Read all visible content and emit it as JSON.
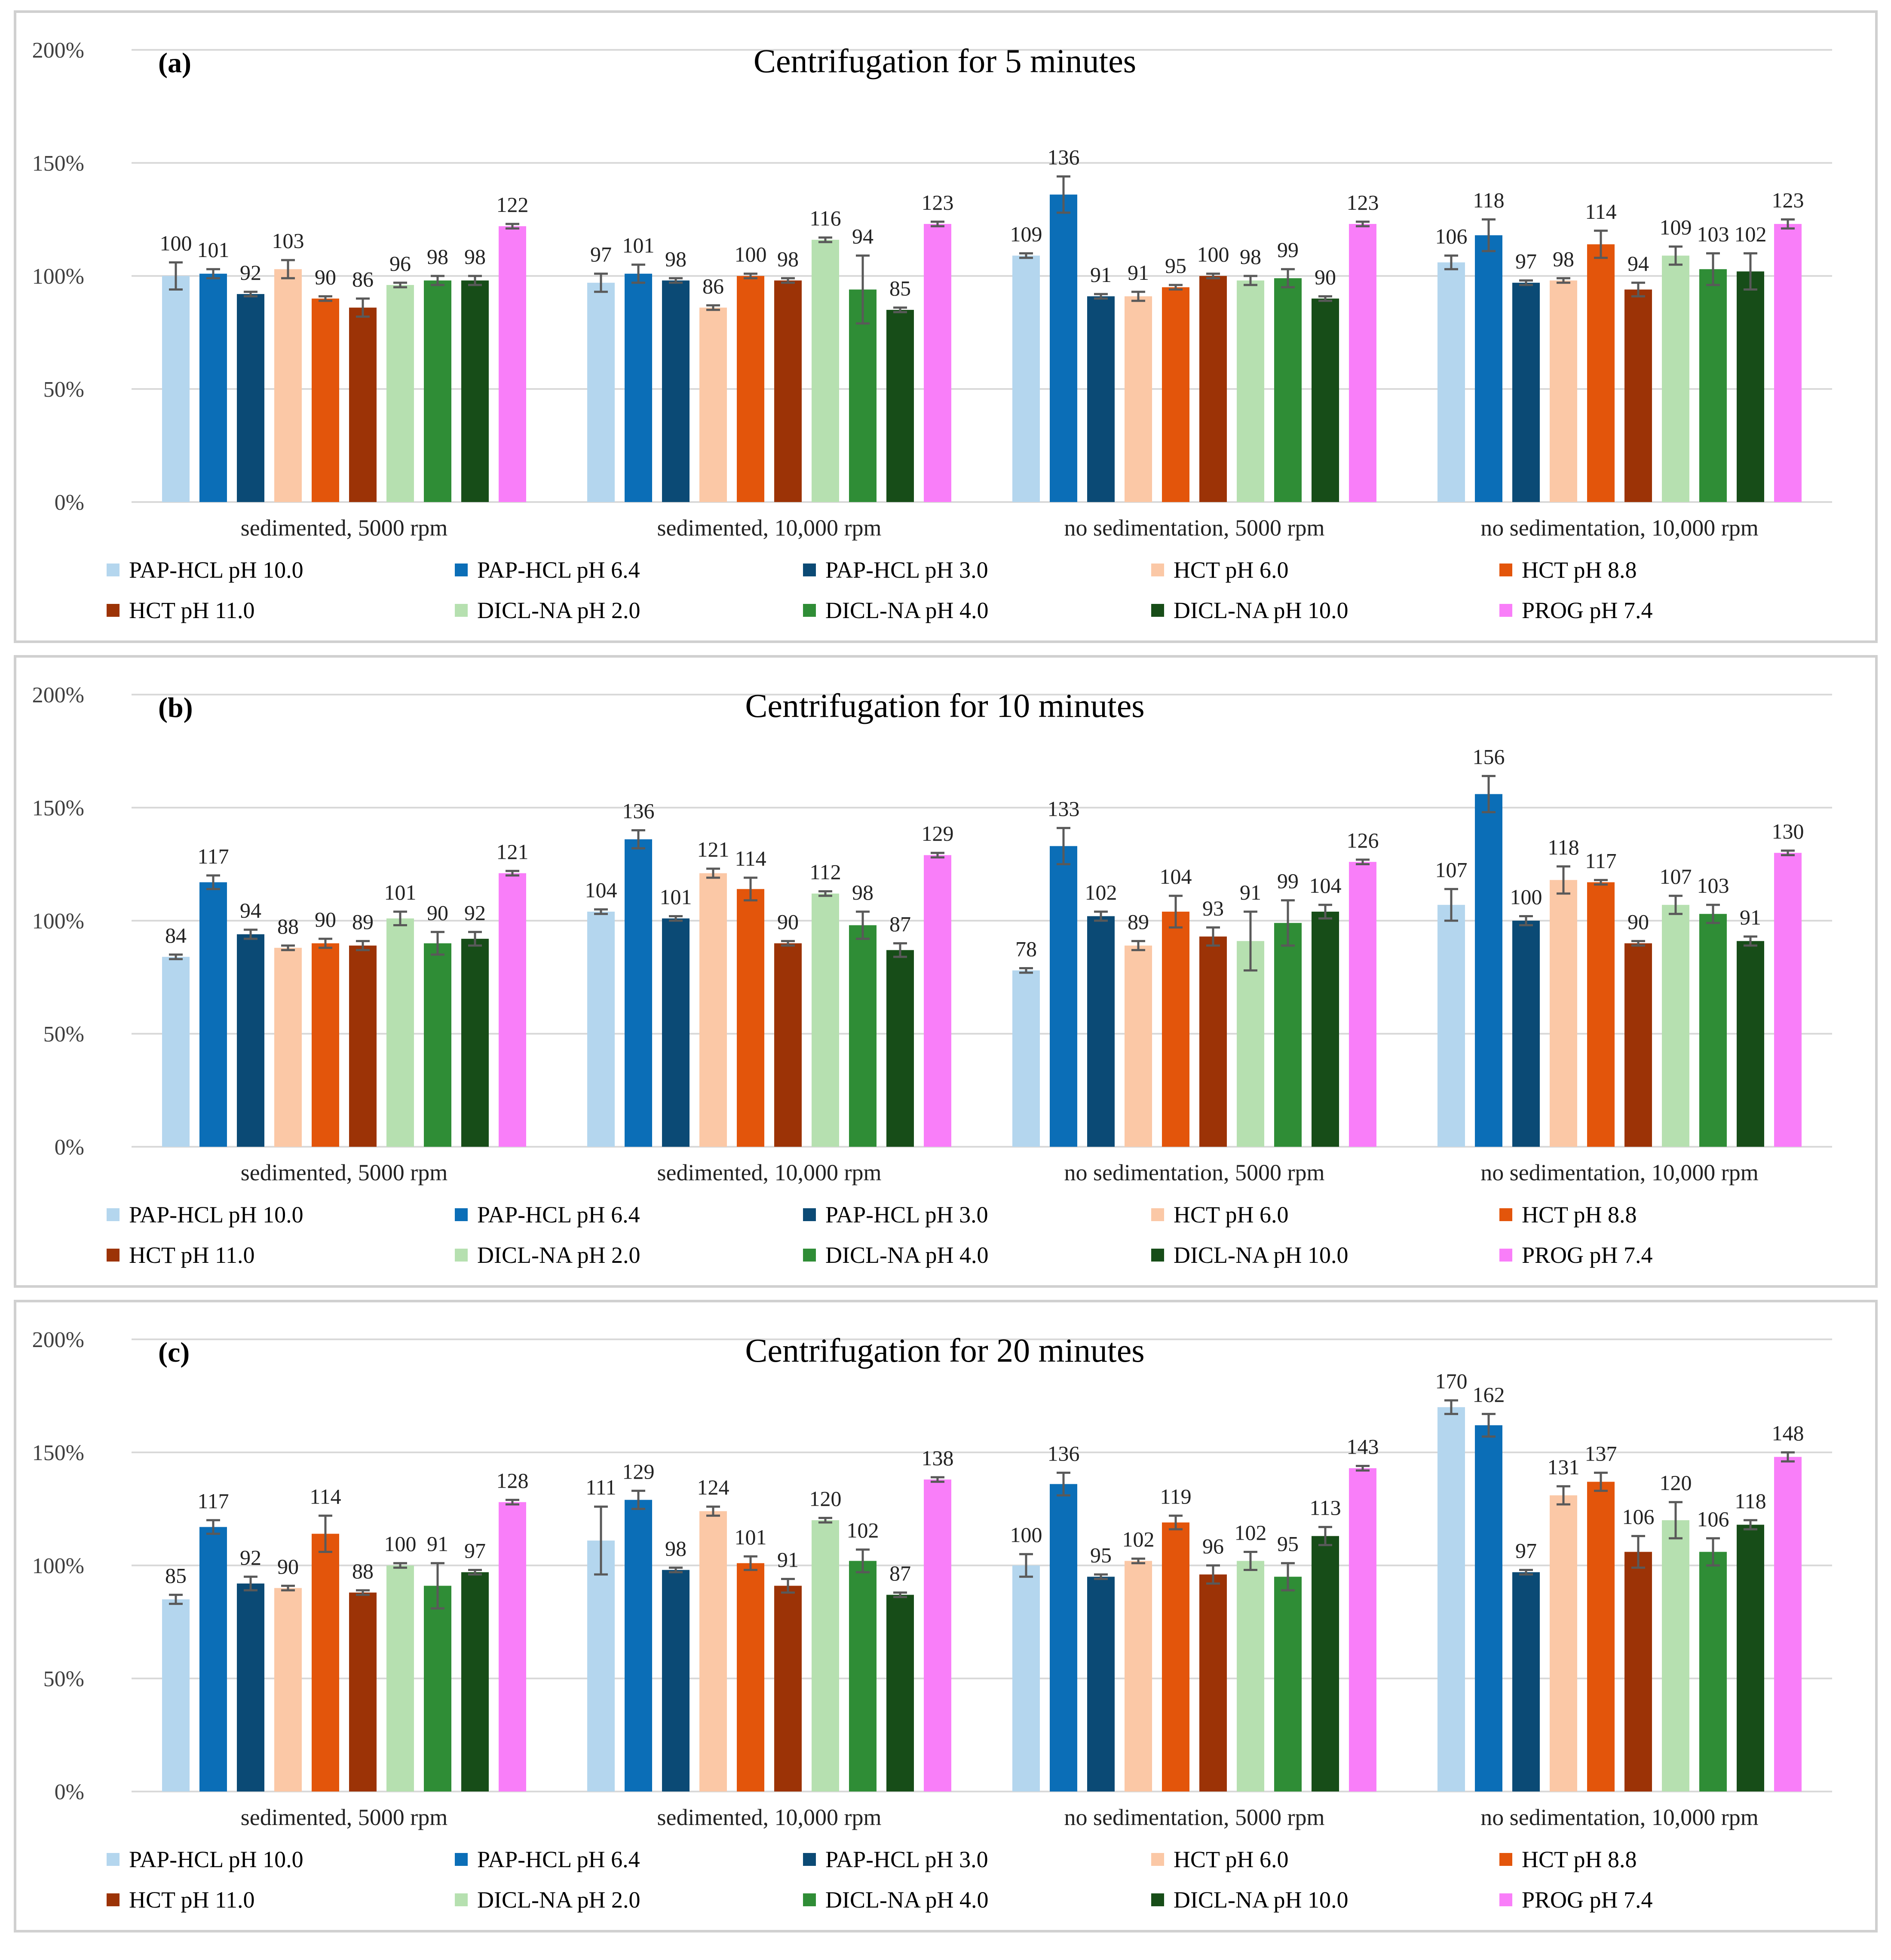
{
  "colors": {
    "PAP-HCL pH 10.0": "#b4d6ee",
    "PAP-HCL pH 6.4": "#0b6eb7",
    "PAP-HCL pH 3.0": "#0b4a75",
    "HCT pH 6.0": "#fbc8a6",
    "HCT pH 8.8": "#e3550b",
    "HCT pH 11.0": "#9c3306",
    "DICL-NA pH 2.0": "#b6e0b0",
    "DICL-NA pH 4.0": "#2f8d36",
    "DICL-NA pH 10.0": "#174d18",
    "PROG pH 7.4": "#f97ef9",
    "grid": "#d9d9d9",
    "errorbar": "#595959"
  },
  "chart_data": [
    {
      "panel_label": "(a)",
      "type": "bar",
      "title": "Centrifugation for 5 minutes",
      "ylim": [
        0,
        200
      ],
      "yticks": [
        "0%",
        "50%",
        "100%",
        "150%",
        "200%"
      ],
      "categories": [
        "sedimented, 5000 rpm",
        "sedimented, 10,000 rpm",
        "no sedimentation, 5000 rpm",
        "no sedimentation, 10,000 rpm"
      ],
      "series": [
        {
          "name": "PAP-HCL pH 10.0",
          "values": [
            100,
            97,
            109,
            106
          ],
          "errors": [
            6,
            4,
            1,
            3
          ]
        },
        {
          "name": "PAP-HCL pH 6.4",
          "values": [
            101,
            101,
            136,
            118
          ],
          "errors": [
            2,
            4,
            8,
            7
          ]
        },
        {
          "name": "PAP-HCL pH 3.0",
          "values": [
            92,
            98,
            91,
            97
          ],
          "errors": [
            1,
            1,
            1,
            1
          ]
        },
        {
          "name": "HCT pH 6.0",
          "values": [
            103,
            86,
            91,
            98
          ],
          "errors": [
            4,
            1,
            2,
            1
          ]
        },
        {
          "name": "HCT pH 8.8",
          "values": [
            90,
            100,
            95,
            114
          ],
          "errors": [
            1,
            1,
            1,
            6
          ]
        },
        {
          "name": "HCT pH 11.0",
          "values": [
            86,
            98,
            100,
            94
          ],
          "errors": [
            4,
            1,
            1,
            3
          ]
        },
        {
          "name": "DICL-NA pH 2.0",
          "values": [
            96,
            116,
            98,
            109
          ],
          "errors": [
            1,
            1,
            2,
            4
          ]
        },
        {
          "name": "DICL-NA pH 4.0",
          "values": [
            98,
            94,
            99,
            103
          ],
          "errors": [
            2,
            15,
            4,
            7
          ]
        },
        {
          "name": "DICL-NA pH 10.0",
          "values": [
            98,
            85,
            90,
            102
          ],
          "errors": [
            2,
            1,
            1,
            8
          ]
        },
        {
          "name": "PROG pH 7.4",
          "values": [
            122,
            123,
            123,
            123
          ],
          "errors": [
            1,
            1,
            1,
            2
          ]
        }
      ]
    },
    {
      "panel_label": "(b)",
      "type": "bar",
      "title": "Centrifugation for 10 minutes",
      "ylim": [
        0,
        200
      ],
      "yticks": [
        "0%",
        "50%",
        "100%",
        "150%",
        "200%"
      ],
      "categories": [
        "sedimented, 5000 rpm",
        "sedimented, 10,000 rpm",
        "no sedimentation, 5000 rpm",
        "no sedimentation, 10,000 rpm"
      ],
      "series": [
        {
          "name": "PAP-HCL pH 10.0",
          "values": [
            84,
            104,
            78,
            107
          ],
          "errors": [
            1,
            1,
            1,
            7
          ]
        },
        {
          "name": "PAP-HCL pH 6.4",
          "values": [
            117,
            136,
            133,
            156
          ],
          "errors": [
            3,
            4,
            8,
            8
          ]
        },
        {
          "name": "PAP-HCL pH 3.0",
          "values": [
            94,
            101,
            102,
            100
          ],
          "errors": [
            2,
            1,
            2,
            2
          ]
        },
        {
          "name": "HCT pH 6.0",
          "values": [
            88,
            121,
            89,
            118
          ],
          "errors": [
            1,
            2,
            2,
            6
          ]
        },
        {
          "name": "HCT pH 8.8",
          "values": [
            90,
            114,
            104,
            117
          ],
          "errors": [
            2,
            5,
            7,
            1
          ]
        },
        {
          "name": "HCT pH 11.0",
          "values": [
            89,
            90,
            93,
            90
          ],
          "errors": [
            2,
            1,
            4,
            1
          ]
        },
        {
          "name": "DICL-NA pH 2.0",
          "values": [
            101,
            112,
            91,
            107
          ],
          "errors": [
            3,
            1,
            13,
            4
          ]
        },
        {
          "name": "DICL-NA pH 4.0",
          "values": [
            90,
            98,
            99,
            103
          ],
          "errors": [
            5,
            6,
            10,
            4
          ]
        },
        {
          "name": "DICL-NA pH 10.0",
          "values": [
            92,
            87,
            104,
            91
          ],
          "errors": [
            3,
            3,
            3,
            2
          ]
        },
        {
          "name": "PROG pH 7.4",
          "values": [
            121,
            129,
            126,
            130
          ],
          "errors": [
            1,
            1,
            1,
            1
          ]
        }
      ]
    },
    {
      "panel_label": "(c)",
      "type": "bar",
      "title": "Centrifugation for 20 minutes",
      "ylim": [
        0,
        200
      ],
      "yticks": [
        "0%",
        "50%",
        "100%",
        "150%",
        "200%"
      ],
      "categories": [
        "sedimented, 5000 rpm",
        "sedimented, 10,000 rpm",
        "no sedimentation, 5000 rpm",
        "no sedimentation, 10,000 rpm"
      ],
      "series": [
        {
          "name": "PAP-HCL pH 10.0",
          "values": [
            85,
            111,
            100,
            170
          ],
          "errors": [
            2,
            15,
            5,
            3
          ]
        },
        {
          "name": "PAP-HCL pH 6.4",
          "values": [
            117,
            129,
            136,
            162
          ],
          "errors": [
            3,
            4,
            5,
            5
          ]
        },
        {
          "name": "PAP-HCL pH 3.0",
          "values": [
            92,
            98,
            95,
            97
          ],
          "errors": [
            3,
            1,
            1,
            1
          ]
        },
        {
          "name": "HCT pH 6.0",
          "values": [
            90,
            124,
            102,
            131
          ],
          "errors": [
            1,
            2,
            1,
            4
          ]
        },
        {
          "name": "HCT pH 8.8",
          "values": [
            114,
            101,
            119,
            137
          ],
          "errors": [
            8,
            3,
            3,
            4
          ]
        },
        {
          "name": "HCT pH 11.0",
          "values": [
            88,
            91,
            96,
            106
          ],
          "errors": [
            1,
            3,
            4,
            7
          ]
        },
        {
          "name": "DICL-NA pH 2.0",
          "values": [
            100,
            120,
            102,
            120
          ],
          "errors": [
            1,
            1,
            4,
            8
          ]
        },
        {
          "name": "DICL-NA pH 4.0",
          "values": [
            91,
            102,
            95,
            106
          ],
          "errors": [
            10,
            5,
            6,
            6
          ]
        },
        {
          "name": "DICL-NA pH 10.0",
          "values": [
            97,
            87,
            113,
            118
          ],
          "errors": [
            1,
            1,
            4,
            2
          ]
        },
        {
          "name": "PROG pH 7.4",
          "values": [
            128,
            138,
            143,
            148
          ],
          "errors": [
            1,
            1,
            1,
            2
          ]
        }
      ]
    }
  ]
}
